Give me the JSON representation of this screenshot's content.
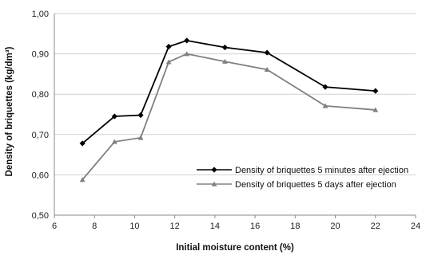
{
  "chart_data": {
    "type": "line",
    "title": "",
    "xlabel": "Initial moisture content (%)",
    "ylabel": "Density of briquettes (kg/dm³)",
    "xlim": [
      6,
      24
    ],
    "ylim": [
      0.5,
      1.0
    ],
    "x_ticks": [
      6,
      8,
      10,
      12,
      14,
      16,
      18,
      20,
      22,
      24
    ],
    "x_tick_labels": [
      "6",
      "8",
      "10",
      "12",
      "14",
      "16",
      "18",
      "20",
      "22",
      "24"
    ],
    "y_ticks": [
      0.5,
      0.6,
      0.7,
      0.8,
      0.9,
      1.0
    ],
    "y_tick_labels": [
      "0,50",
      "0,60",
      "0,70",
      "0,80",
      "0,90",
      "1,00"
    ],
    "grid": "horizontal",
    "legend_position": "bottom-right",
    "series": [
      {
        "name": "Density of briquettes 5 minutes after ejection",
        "color": "#000000",
        "marker": "diamond",
        "x": [
          7.4,
          9.0,
          10.3,
          11.7,
          12.6,
          14.5,
          16.6,
          19.5,
          22.0
        ],
        "y": [
          0.678,
          0.745,
          0.748,
          0.918,
          0.933,
          0.916,
          0.903,
          0.818,
          0.808
        ]
      },
      {
        "name": "Density of briquettes 5 days after ejection",
        "color": "#808080",
        "marker": "triangle",
        "x": [
          7.4,
          9.0,
          10.3,
          11.7,
          12.6,
          14.5,
          16.6,
          19.5,
          22.0
        ],
        "y": [
          0.588,
          0.682,
          0.692,
          0.88,
          0.9,
          0.881,
          0.861,
          0.771,
          0.761
        ]
      }
    ]
  }
}
